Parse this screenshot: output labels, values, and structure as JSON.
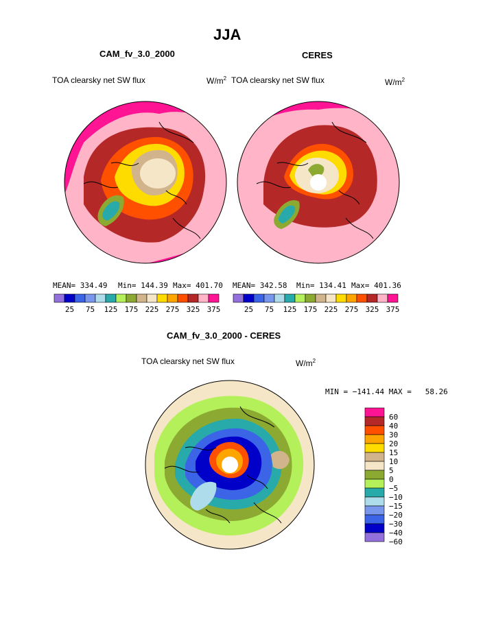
{
  "page": {
    "title": "JJA"
  },
  "colors": {
    "abs_levels": [
      "#9370db",
      "#0000c8",
      "#3c64e6",
      "#7896eb",
      "#aedceb",
      "#28aaaa",
      "#b4f05a",
      "#8caa32",
      "#d2b48c",
      "#f5e6c8",
      "#ffdc00",
      "#ffa500",
      "#ff5000",
      "#b42828",
      "#ffb4c8",
      "#ff1493"
    ],
    "diff_levels": [
      "#9370db",
      "#0000c8",
      "#3c64e6",
      "#7896eb",
      "#aedceb",
      "#28aaaa",
      "#b4f05a",
      "#8caa32",
      "#f5e6c8",
      "#d2b48c",
      "#ffdc00",
      "#ffa500",
      "#ff5000",
      "#b42828",
      "#ff1493"
    ]
  },
  "chart_data": [
    {
      "type": "heatmap",
      "projection": "north-polar-stereographic",
      "title": "CAM_fv_3.0_2000",
      "left_label": "TOA clearsky net SW flux",
      "units_base": "W/m",
      "units_exp": "2",
      "stats": {
        "mean": "MEAN= 334.49",
        "min": "Min= 144.39",
        "max": "Max= 401.70"
      },
      "colorbar_ticks": [
        "25",
        "75",
        "125",
        "175",
        "225",
        "275",
        "325",
        "375"
      ],
      "pole_missing": false
    },
    {
      "type": "heatmap",
      "projection": "north-polar-stereographic",
      "title": "CERES",
      "left_label": "TOA clearsky net SW flux",
      "units_base": "W/m",
      "units_exp": "2",
      "stats": {
        "mean": "MEAN= 342.58",
        "min": "Min= 134.41",
        "max": "Max= 401.36"
      },
      "colorbar_ticks": [
        "25",
        "75",
        "125",
        "175",
        "225",
        "275",
        "325",
        "375"
      ],
      "pole_missing": true
    },
    {
      "type": "heatmap",
      "projection": "north-polar-stereographic",
      "title": "CAM_fv_3.0_2000 - CERES",
      "left_label": "TOA clearsky net SW flux",
      "units_base": "W/m",
      "units_exp": "2",
      "stats_text": "MIN = −141.44 MAX =   58.26",
      "colorbar_ticks": [
        "60",
        "40",
        "30",
        "20",
        "15",
        "10",
        "5",
        "0",
        "−5",
        "−10",
        "−15",
        "−20",
        "−30",
        "−40",
        "−60"
      ],
      "pole_missing": true
    }
  ]
}
